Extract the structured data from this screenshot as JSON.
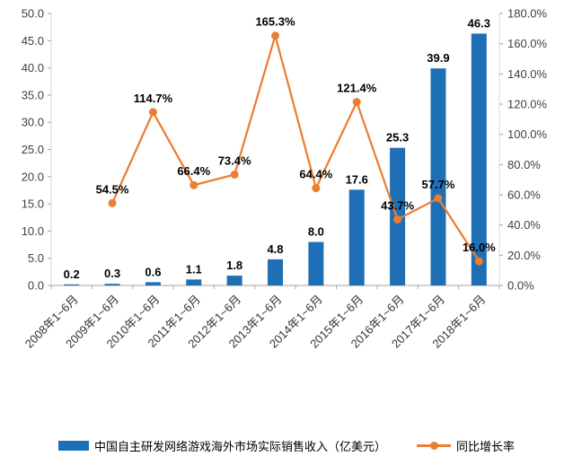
{
  "chart_data": {
    "type": "bar+line",
    "categories": [
      "2008年1~6月",
      "2009年1~6月",
      "2010年1~6月",
      "2011年1~6月",
      "2012年1~6月",
      "2013年1~6月",
      "2014年1~6月",
      "2015年1~6月",
      "2016年1~6月",
      "2017年1~6月",
      "2018年1~6月"
    ],
    "series": [
      {
        "name": "中国自主研发网络游戏海外市场实际销售收入（亿美元）",
        "type": "bar",
        "axis": "left",
        "color": "#1F6FB5",
        "values": [
          0.2,
          0.3,
          0.6,
          1.1,
          1.8,
          4.8,
          8.0,
          17.6,
          25.3,
          39.9,
          46.3
        ],
        "labels": [
          "0.2",
          "0.3",
          "0.6",
          "1.1",
          "1.8",
          "4.8",
          "8.0",
          "17.6",
          "25.3",
          "39.9",
          "46.3"
        ]
      },
      {
        "name": "同比增长率",
        "type": "line",
        "axis": "right",
        "color": "#ED7D31",
        "values": [
          null,
          54.5,
          114.7,
          66.4,
          73.4,
          165.3,
          64.4,
          121.4,
          43.7,
          57.7,
          16.0
        ],
        "labels": [
          "",
          "54.5%",
          "114.7%",
          "66.4%",
          "73.4%",
          "165.3%",
          "64.4%",
          "121.4%",
          "43.7%",
          "57.7%",
          "16.0%"
        ]
      }
    ],
    "left_axis": {
      "min": 0,
      "max": 50,
      "step": 5,
      "tick_labels": [
        "0.0",
        "5.0",
        "10.0",
        "15.0",
        "20.0",
        "25.0",
        "30.0",
        "35.0",
        "40.0",
        "45.0",
        "50.0"
      ]
    },
    "right_axis": {
      "min": 0,
      "max": 180,
      "step": 20,
      "tick_labels": [
        "0.0%",
        "20.0%",
        "40.0%",
        "60.0%",
        "80.0%",
        "100.0%",
        "120.0%",
        "140.0%",
        "160.0%",
        "180.0%"
      ]
    },
    "grid": false,
    "legend_position": "bottom",
    "colors": {
      "bar": "#1F6FB5",
      "line": "#ED7D31",
      "axis_line": "#A6A6A6",
      "tick_text": "#404040",
      "label_text": "#000000"
    }
  }
}
